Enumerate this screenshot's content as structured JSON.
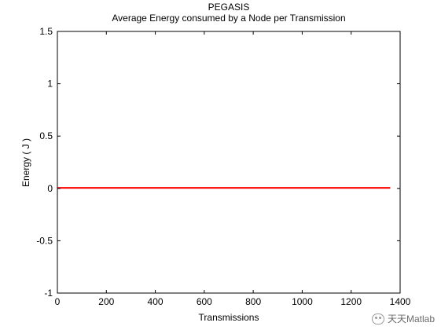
{
  "chart_data": {
    "type": "line",
    "title": "PEGASIS",
    "subtitle": "Average Energy consumed by a Node per Transmission",
    "xlabel": "Transmissions",
    "ylabel": "Energy ( J )",
    "xlim": [
      0,
      1400
    ],
    "ylim": [
      -1,
      1.5
    ],
    "xticks": [
      0,
      200,
      400,
      600,
      800,
      1000,
      1200,
      1400
    ],
    "yticks": [
      -1,
      -0.5,
      0,
      0.5,
      1,
      1.5
    ],
    "xtick_labels": [
      "0",
      "200",
      "400",
      "600",
      "800",
      "1000",
      "1200",
      "1400"
    ],
    "ytick_labels": [
      "-1",
      "-0.5",
      "0",
      "0.5",
      "1",
      "1.5"
    ],
    "grid": false,
    "series": [
      {
        "color": "#ff0000",
        "x": [
          1,
          1360
        ],
        "y": [
          0.005,
          0.005
        ]
      }
    ]
  },
  "watermark": {
    "text": "天天Matlab",
    "icon": "wechat-icon"
  }
}
